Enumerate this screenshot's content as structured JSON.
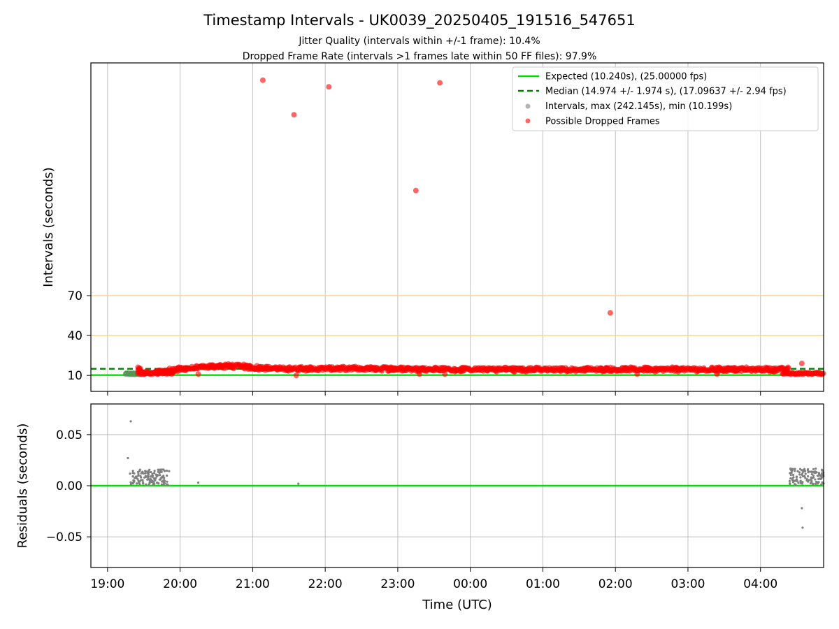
{
  "chart_data": [
    {
      "type": "scatter",
      "title": "Timestamp Intervals - UK0039_20250405_191516_547651",
      "subtitle_lines": [
        "Jitter Quality (intervals within +/-1 frame): 10.4%",
        "Dropped Frame Rate (intervals >1 frames late within 50 FF files): 97.9%"
      ],
      "xlabel": "",
      "ylabel": "Intervals (seconds)",
      "x_ticks": [
        "19:00",
        "20:00",
        "21:00",
        "22:00",
        "23:00",
        "00:00",
        "01:00",
        "02:00",
        "03:00",
        "04:00"
      ],
      "x_range_hours": [
        18.77,
        28.87
      ],
      "y_ticks": [
        10,
        40,
        70
      ],
      "ylim": [
        -2,
        245
      ],
      "grid": "vertical",
      "legend_position": "top-right",
      "legend": [
        "Expected (10.240s), (25.00000 fps)",
        "Median (14.974 +/- 1.974 s), (17.09637 +/- 2.94 fps)",
        "Intervals, max (242.145s), min (10.199s)",
        "Possible Dropped Frames"
      ],
      "reference_lines": {
        "expected": 10.24,
        "median": 14.974,
        "threshold_lines": [
          40,
          70
        ]
      },
      "colors": {
        "expected": "#00e000",
        "median": "#007f00",
        "intervals": "#808080",
        "dropped": "#ff0000",
        "threshold": "#f8d488"
      },
      "band_profile": [
        {
          "x": 19.45,
          "y": 12
        },
        {
          "x": 19.6,
          "y": 12
        },
        {
          "x": 19.75,
          "y": 13
        },
        {
          "x": 19.9,
          "y": 14
        },
        {
          "x": 20.05,
          "y": 15
        },
        {
          "x": 20.3,
          "y": 16
        },
        {
          "x": 20.5,
          "y": 17
        },
        {
          "x": 20.8,
          "y": 17
        },
        {
          "x": 21.0,
          "y": 16
        },
        {
          "x": 21.4,
          "y": 15
        },
        {
          "x": 22.0,
          "y": 15
        },
        {
          "x": 23.0,
          "y": 15
        },
        {
          "x": 24.0,
          "y": 14.5
        },
        {
          "x": 25.0,
          "y": 14.5
        },
        {
          "x": 26.0,
          "y": 14.5
        },
        {
          "x": 27.0,
          "y": 14.5
        },
        {
          "x": 28.3,
          "y": 14.5
        }
      ],
      "dropped_points": [
        {
          "x": 21.14,
          "y": 232
        },
        {
          "x": 21.57,
          "y": 206
        },
        {
          "x": 22.05,
          "y": 227
        },
        {
          "x": 23.58,
          "y": 230
        },
        {
          "x": 23.25,
          "y": 149
        },
        {
          "x": 25.93,
          "y": 57
        },
        {
          "x": 28.57,
          "y": 19
        },
        {
          "x": 20.25,
          "y": 11
        },
        {
          "x": 21.6,
          "y": 10
        },
        {
          "x": 23.3,
          "y": 11
        },
        {
          "x": 23.65,
          "y": 11
        },
        {
          "x": 26.3,
          "y": 11
        },
        {
          "x": 27.4,
          "y": 11
        }
      ]
    },
    {
      "type": "scatter",
      "title": "",
      "xlabel": "Time (UTC)",
      "ylabel": "Residuals (seconds)",
      "x_ticks": [
        "19:00",
        "20:00",
        "21:00",
        "22:00",
        "23:00",
        "00:00",
        "01:00",
        "02:00",
        "03:00",
        "04:00"
      ],
      "x_range_hours": [
        18.77,
        28.87
      ],
      "y_ticks": [
        "0.05",
        "0.00",
        "−0.05"
      ],
      "y_tick_values": [
        0.05,
        0.0,
        -0.05
      ],
      "ylim": [
        -0.08,
        0.08
      ],
      "grid": "both",
      "zero_line_color": "#00e000",
      "point_color": "#808080",
      "points": [
        {
          "x": 19.32,
          "y": 0.063
        },
        {
          "x": 19.28,
          "y": 0.027
        },
        {
          "x": 20.25,
          "y": 0.003
        },
        {
          "x": 21.63,
          "y": 0.002
        },
        {
          "x": 28.57,
          "y": -0.022
        },
        {
          "x": 28.58,
          "y": -0.041
        }
      ],
      "clusters": [
        {
          "x_range": [
            19.3,
            19.85
          ],
          "y_range": [
            0.001,
            0.016
          ]
        },
        {
          "x_range": [
            28.4,
            28.87
          ],
          "y_range": [
            0.001,
            0.017
          ]
        }
      ]
    }
  ]
}
